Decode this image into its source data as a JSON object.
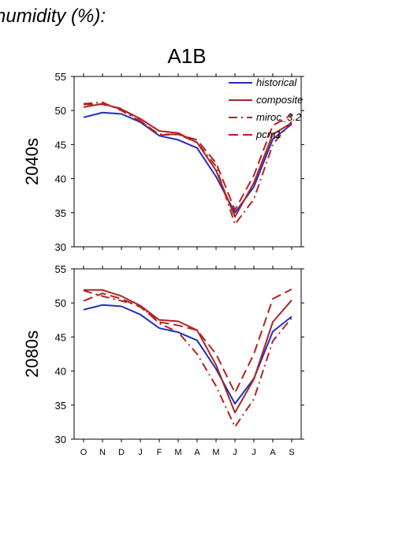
{
  "title": "humidity (%):",
  "scenario": "A1B",
  "months": [
    "O",
    "N",
    "D",
    "J",
    "F",
    "M",
    "A",
    "M",
    "J",
    "J",
    "A",
    "S"
  ],
  "colors": {
    "historical": "#1f2fbf",
    "model": "#b22222",
    "axis": "#000000"
  },
  "chart_data": [
    {
      "type": "line",
      "panel_label": "2040s",
      "xlabel": "",
      "ylabel": "",
      "ylim": [
        30,
        55
      ],
      "yticks": [
        30,
        35,
        40,
        45,
        50,
        55
      ],
      "categories": [
        "O",
        "N",
        "D",
        "J",
        "F",
        "M",
        "A",
        "M",
        "J",
        "J",
        "A",
        "S"
      ],
      "legend": "top-right",
      "series": [
        {
          "name": "historical",
          "dash": "solid",
          "values": [
            49.0,
            49.7,
            49.5,
            48.3,
            46.3,
            45.7,
            44.5,
            40.3,
            35.0,
            38.8,
            45.8,
            48.0
          ]
        },
        {
          "name": "composite",
          "dash": "solid",
          "values": [
            50.5,
            51.0,
            50.2,
            48.8,
            47.0,
            46.7,
            45.3,
            41.2,
            34.4,
            39.4,
            46.5,
            48.2
          ]
        },
        {
          "name": "miroc_3.2",
          "dash": "dashdot",
          "values": [
            51.0,
            51.2,
            50.0,
            48.4,
            46.5,
            46.5,
            45.3,
            41.8,
            33.3,
            37.0,
            45.0,
            48.4
          ]
        },
        {
          "name": "pcm1",
          "dash": "dashed",
          "values": [
            50.9,
            50.9,
            50.3,
            48.5,
            46.4,
            46.5,
            45.7,
            42.3,
            35.4,
            40.5,
            47.8,
            49.4
          ]
        }
      ]
    },
    {
      "type": "line",
      "panel_label": "2080s",
      "xlabel": "",
      "ylabel": "",
      "ylim": [
        30,
        55
      ],
      "yticks": [
        30,
        35,
        40,
        45,
        50,
        55
      ],
      "categories": [
        "O",
        "N",
        "D",
        "J",
        "F",
        "M",
        "A",
        "M",
        "J",
        "J",
        "A",
        "S"
      ],
      "series": [
        {
          "name": "historical",
          "dash": "solid",
          "values": [
            49.0,
            49.7,
            49.5,
            48.3,
            46.3,
            45.7,
            44.5,
            40.3,
            35.2,
            38.9,
            45.8,
            48.0
          ]
        },
        {
          "name": "composite",
          "dash": "solid",
          "values": [
            51.9,
            51.9,
            51.0,
            49.6,
            47.5,
            47.3,
            46.0,
            40.9,
            33.9,
            38.8,
            47.2,
            50.4
          ]
        },
        {
          "name": "miroc_3.2",
          "dash": "dashdot",
          "values": [
            51.8,
            51.0,
            50.3,
            49.6,
            47.0,
            45.7,
            42.5,
            37.8,
            31.8,
            35.9,
            44.4,
            47.8
          ]
        },
        {
          "name": "pcm1",
          "dash": "dashed",
          "values": [
            50.3,
            51.4,
            50.6,
            49.4,
            47.2,
            46.7,
            46.0,
            42.5,
            36.8,
            42.5,
            50.6,
            52.0
          ]
        }
      ]
    }
  ],
  "legend_items": [
    "historical",
    "composite",
    "miroc_3.2",
    "pcm1"
  ]
}
